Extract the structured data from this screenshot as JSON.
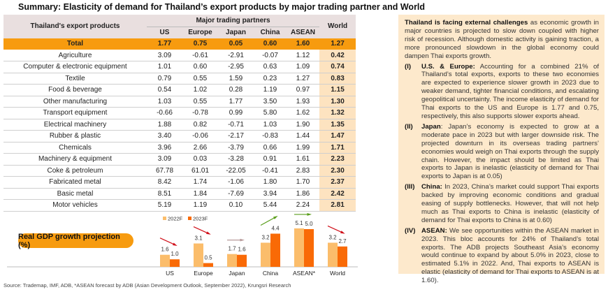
{
  "title": "Summary: Elasticity of demand for Thailand’s export products by major trading partner and World",
  "table": {
    "product_header": "Thailand's export products",
    "group_header": "Major trading partners",
    "columns": [
      "US",
      "Europe",
      "Japan",
      "China",
      "ASEAN"
    ],
    "world_header": "World",
    "total": {
      "label": "Total",
      "values": [
        "1.77",
        "0.75",
        "0.05",
        "0.60",
        "1.60"
      ],
      "world": "1.27"
    },
    "rows": [
      {
        "label": "Agriculture",
        "values": [
          "3.09",
          "-0.61",
          "-2.91",
          "-0.07",
          "1.12"
        ],
        "world": "0.42"
      },
      {
        "label": "Computer & electronic equipment",
        "values": [
          "1.01",
          "0.60",
          "-2.95",
          "0.63",
          "1.09"
        ],
        "world": "0.74"
      },
      {
        "label": "Textile",
        "values": [
          "0.79",
          "0.55",
          "1.59",
          "0.23",
          "1.27"
        ],
        "world": "0.83"
      },
      {
        "label": "Food & beverage",
        "values": [
          "0.54",
          "1.02",
          "0.28",
          "1.19",
          "0.97"
        ],
        "world": "1.15"
      },
      {
        "label": "Other manufacturing",
        "values": [
          "1.03",
          "0.55",
          "1.77",
          "3.50",
          "1.93"
        ],
        "world": "1.30"
      },
      {
        "label": "Transport equipment",
        "values": [
          "-0.66",
          "-0.78",
          "0.99",
          "5.80",
          "1.62"
        ],
        "world": "1.32"
      },
      {
        "label": "Electrical machinery",
        "values": [
          "1.88",
          "0.82",
          "-0.71",
          "1.03",
          "1.90"
        ],
        "world": "1.35"
      },
      {
        "label": "Rubber & plastic",
        "values": [
          "3.40",
          "-0.06",
          "-2.17",
          "-0.83",
          "1.44"
        ],
        "world": "1.47"
      },
      {
        "label": "Chemicals",
        "values": [
          "3.96",
          "2.66",
          "-3.79",
          "0.66",
          "1.99"
        ],
        "world": "1.71"
      },
      {
        "label": "Machinery & equipment",
        "values": [
          "3.09",
          "0.03",
          "-3.28",
          "0.91",
          "1.61"
        ],
        "world": "2.23"
      },
      {
        "label": "Coke & petroleum",
        "values": [
          "67.78",
          "61.01",
          "-22.05",
          "-0.41",
          "2.83"
        ],
        "world": "2.30"
      },
      {
        "label": "Fabricated metal",
        "values": [
          "8.42",
          "1.74",
          "-1.06",
          "1.80",
          "1.70"
        ],
        "world": "2.37"
      },
      {
        "label": "Basic metal",
        "values": [
          "8.51",
          "1.84",
          "-7.69",
          "3.94",
          "1.86"
        ],
        "world": "2.42"
      },
      {
        "label": "Motor vehicles",
        "values": [
          "5.19",
          "1.19",
          "0.10",
          "5.44",
          "2.24"
        ],
        "world": "2.81"
      }
    ]
  },
  "chart_data": {
    "type": "bar",
    "title": "Real GDP growth projection (%)",
    "categories": [
      "US",
      "Europe",
      "Japan",
      "China",
      "ASEAN*",
      "World"
    ],
    "series": [
      {
        "name": "2022F",
        "color": "#fbbd6b",
        "values": [
          1.6,
          3.1,
          1.7,
          3.2,
          5.1,
          3.2
        ]
      },
      {
        "name": "2023F",
        "color": "#f96a06",
        "values": [
          1.0,
          0.5,
          1.6,
          4.4,
          5.0,
          2.7
        ]
      }
    ],
    "trend_arrows": [
      "down",
      "down",
      "flat",
      "up",
      "flat",
      "down"
    ],
    "arrow_colors": {
      "down": "#d0101a",
      "flat": "#b89a9a",
      "up": "#5a9e1c",
      "flat_asean": "#5a9e1c"
    }
  },
  "panel": {
    "intro_bold": "Thailand is facing external challenges",
    "intro": " as economic growth in major countries is projected to slow down coupled with higher risk of recession. Although domestic activity is gaining traction, a more pronounced slowdown in the global economy could dampen Thai exports growth.",
    "items": [
      {
        "num": "(I)",
        "head": "U.S. & Europe:",
        "text": " Accounting for a combined 21% of Thailand’s total exports, exports to these two economies are expected to experience slower growth in 2023 due to weaker demand, tighter financial conditions, and escalating geopolitical uncertainty. The income elasticity of demand for Thai exports to the US and Europe is 1.77 and 0.75, respectively, this also supports slower exports ahead."
      },
      {
        "num": "(II)",
        "head": "Japan",
        "text": ": Japan’s economy is expected to grow at a moderate pace in 2023 but with larger downside risk. The projected downturn in its overseas trading partners’ economies would weigh on Thai exports through the supply chain. However, the impact should be limited as Thai exports to Japan is inelastic (elasticity of demand for Thai exports to Japan is at 0.05)"
      },
      {
        "num": "(III)",
        "head": "China:",
        "text": " In 2023, China’s market could support Thai exports backed by improving economic conditions and gradual easing of supply bottlenecks. However, that will not help much as Thai exports to China is inelastic (elasticity of demand for Thai exports to China is at 0.60)"
      },
      {
        "num": "(IV)",
        "head": "ASEAN:",
        "text": " We see opportunities within the ASEAN market in 2023. This bloc accounts for 24% of Thailand’s total exports. The ADB projects Southeast Asia’s economy would continue to expand by about 5.0% in 2023, close to estimated 5.1% in 2022. And, Thai exports to ASEAN is elastic (elasticity of demand for Thai exports to ASEAN is at 1.60)."
      }
    ]
  },
  "source": "Source: Trademap, IMF, ADB, *ASEAN forecast by ADB (Asian Development Outlook, September 2022), Krungsri Research"
}
